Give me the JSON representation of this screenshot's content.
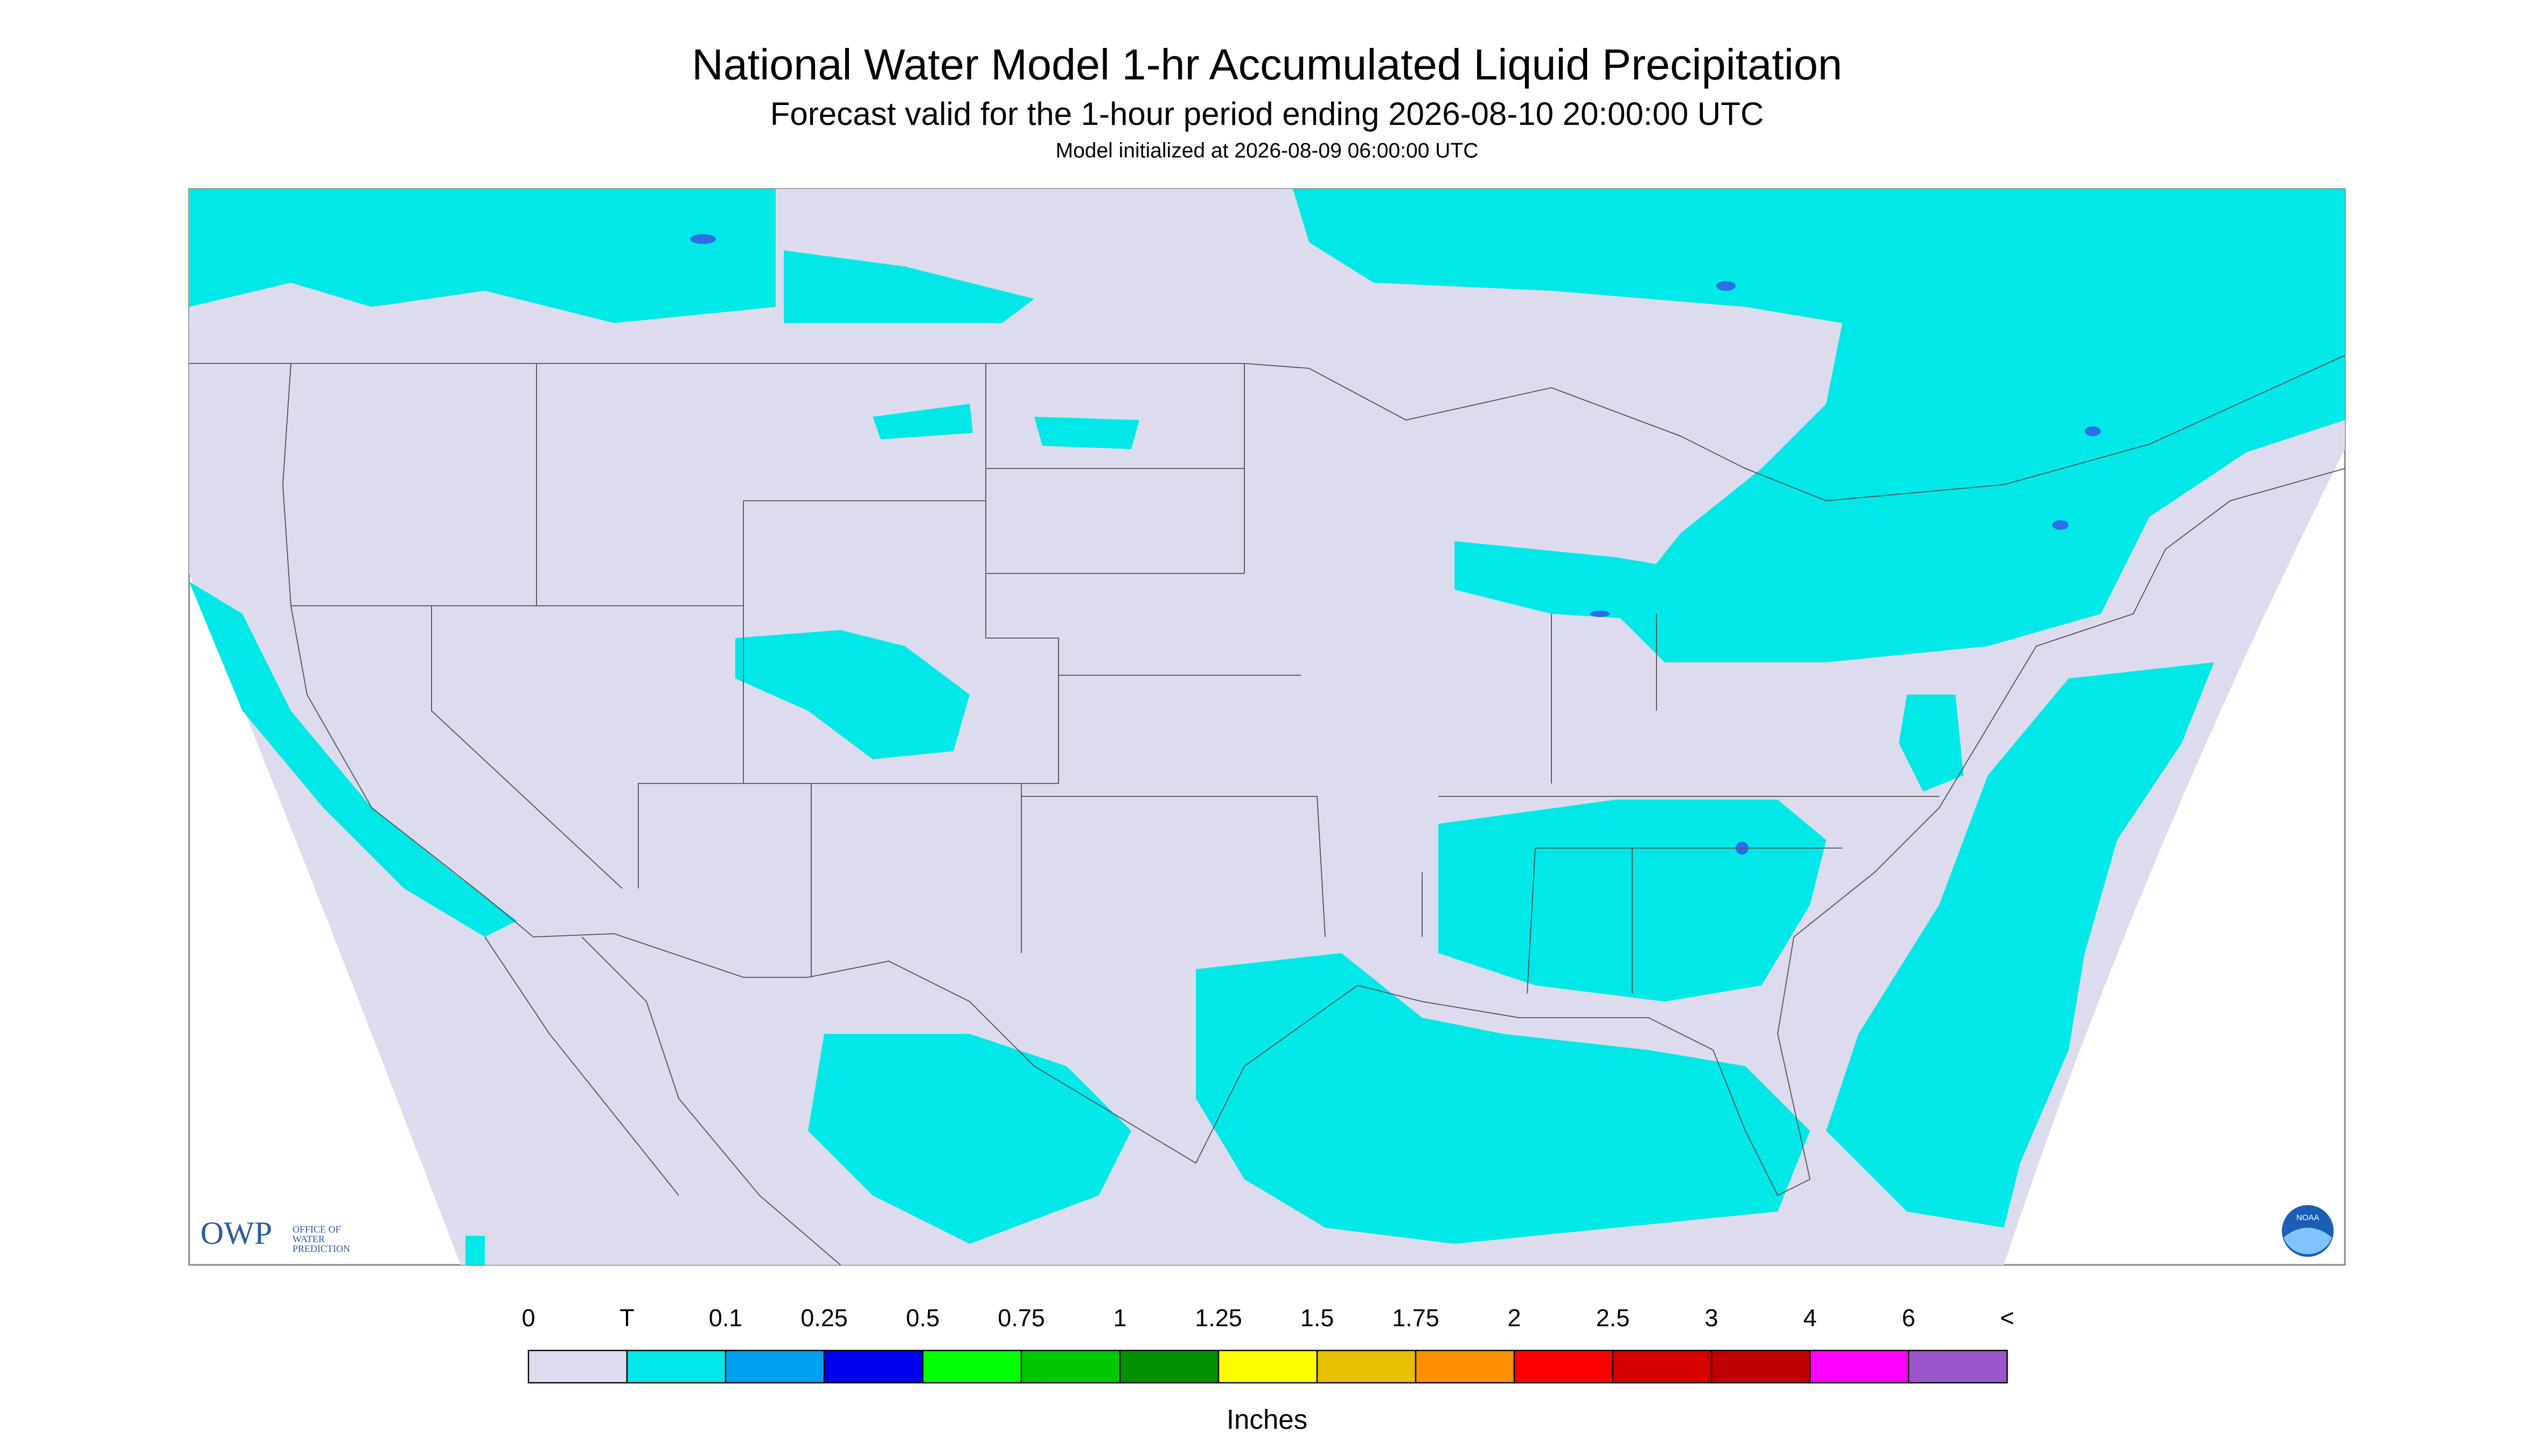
{
  "header": {
    "title": "National Water Model 1-hr Accumulated Liquid Precipitation",
    "subtitle": "Forecast valid for the 1-hour period ending 2026-08-10 20:00:00 UTC",
    "init": "Model initialized at 2026-08-09 06:00:00 UTC"
  },
  "logos": {
    "owp": "OWP",
    "owp_text": [
      "OFFICE OF",
      "WATER",
      "PREDICTION"
    ],
    "noaa": "NOAA"
  },
  "legend": {
    "labels": [
      "0",
      "T",
      "0.1",
      "0.25",
      "0.5",
      "0.75",
      "1",
      "1.25",
      "1.5",
      "1.75",
      "2",
      "2.5",
      "3",
      "4",
      "6",
      "<"
    ],
    "colors": [
      "#dcdcee",
      "#00e8e8",
      "#00a0f0",
      "#0000f0",
      "#00ff00",
      "#00c800",
      "#009000",
      "#ffff00",
      "#e7c000",
      "#ff9000",
      "#ff0000",
      "#d60000",
      "#c00000",
      "#ff00ff",
      "#9955c9"
    ],
    "units": "Inches"
  }
}
